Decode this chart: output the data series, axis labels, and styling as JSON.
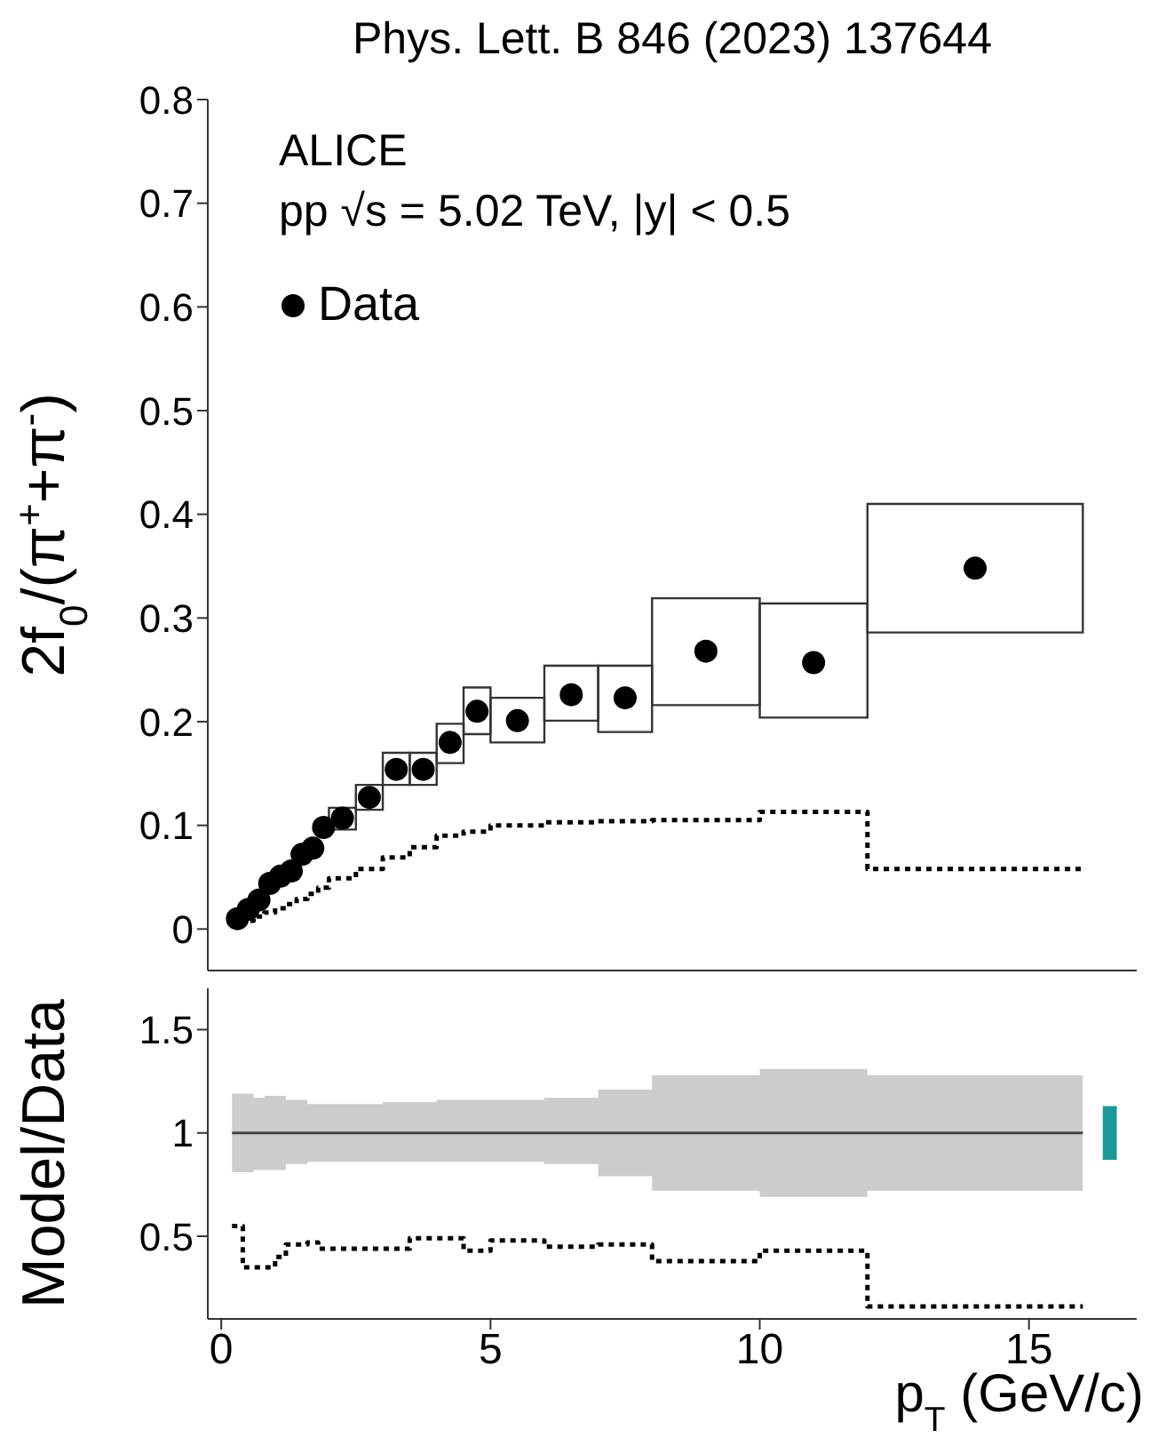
{
  "chart_data": [
    {
      "type": "scatter",
      "title": "Phys. Lett. B 846 (2023) 137644",
      "ylabel": "2f$_{0}$/(π$^{+}$+π$^{-}$)",
      "annotations": [
        "ALICE",
        "pp √s = 5.02 TeV, |y| < 0.5"
      ],
      "xlim": [
        -0.25,
        17
      ],
      "xticks": [
        0,
        5,
        10,
        15
      ],
      "ylim": [
        -0.04,
        0.8
      ],
      "yticks": [
        0,
        0.1,
        0.2,
        0.3,
        0.4,
        0.5,
        0.6,
        0.7,
        0.8
      ],
      "tick_labels": "y",
      "legend": "top left",
      "grid": false,
      "series": [
        {
          "name": "Data",
          "color": "#000000",
          "marker": "circle",
          "x": [
            0.3,
            0.5,
            0.7,
            0.9,
            1.1,
            1.3,
            1.5,
            1.7,
            1.9,
            2.25,
            2.75,
            3.25,
            3.75,
            4.25,
            4.75,
            5.5,
            6.5,
            7.5,
            9,
            11,
            14
          ],
          "values": [
            0.01,
            0.019,
            0.028,
            0.044,
            0.051,
            0.056,
            0.072,
            0.078,
            0.098,
            0.107,
            0.127,
            0.154,
            0.154,
            0.18,
            0.21,
            0.201,
            0.226,
            0.223,
            0.268,
            0.257,
            0.348
          ]
        },
        {
          "type": "bar",
          "color": "#333333",
          "x": [
            2.25,
            2.75,
            3.25,
            3.75,
            4.25,
            4.75,
            5.5,
            6.5,
            7.5,
            9,
            11,
            14
          ],
          "base": [
            0.096,
            0.115,
            0.139,
            0.139,
            0.16,
            0.188,
            0.18,
            0.201,
            0.19,
            0.216,
            0.204,
            0.286
          ],
          "values": [
            0.021,
            0.024,
            0.031,
            0.031,
            0.038,
            0.045,
            0.043,
            0.053,
            0.064,
            0.103,
            0.11,
            0.124
          ]
        },
        {
          "type": "step",
          "color": "#000000",
          "line_style": "dotted",
          "x": [
            0.2,
            0.4,
            0.6,
            0.8,
            1.0,
            1.2,
            1.4,
            1.6,
            1.8,
            2.0,
            2.5,
            3.0,
            3.5,
            4.0,
            4.5,
            5,
            6,
            7,
            8,
            10,
            12,
            16
          ],
          "values": [
            0.005,
            0.008,
            0.012,
            0.016,
            0.02,
            0.024,
            0.029,
            0.034,
            0.04,
            0.049,
            0.058,
            0.069,
            0.079,
            0.09,
            0.094,
            0.1,
            0.103,
            0.104,
            0.105,
            0.113,
            0.058,
            0.058
          ]
        }
      ]
    },
    {
      "type": "step",
      "ylabel": "Model/Data",
      "xlabel": "p$_{T}$ (GeV/c)",
      "xlim": [
        -0.25,
        17
      ],
      "xticks": [
        0,
        5,
        10,
        15
      ],
      "ylim": [
        0.1,
        1.7
      ],
      "yticks": [
        0.5,
        1,
        1.5
      ],
      "grid": false,
      "series": [
        {
          "color": "#444444",
          "x": [
            0.2,
            0.6,
            0.8,
            1.2,
            1.6,
            3,
            4,
            6,
            7,
            8,
            10,
            12,
            16
          ],
          "values": [
            1,
            1,
            1,
            1,
            1,
            1,
            1,
            1,
            1,
            1,
            1,
            1,
            1
          ],
          "lower": [
            0.81,
            0.82,
            0.82,
            0.85,
            0.86,
            0.86,
            0.86,
            0.85,
            0.79,
            0.72,
            0.69,
            0.72,
            0.72
          ],
          "upper": [
            1.19,
            1.17,
            1.18,
            1.16,
            1.14,
            1.15,
            1.16,
            1.17,
            1.21,
            1.28,
            1.31,
            1.28,
            1.28
          ]
        },
        {
          "color": "#000000",
          "line_style": "dotted",
          "x": [
            0.2,
            0.4,
            1.0,
            1.2,
            1.6,
            1.8,
            3.5,
            4.5,
            5,
            6,
            7,
            8,
            10,
            12,
            16
          ],
          "values": [
            0.55,
            0.35,
            0.4,
            0.46,
            0.47,
            0.44,
            0.49,
            0.43,
            0.48,
            0.45,
            0.46,
            0.38,
            0.43,
            0.16,
            0.16
          ]
        },
        {
          "type": "bar",
          "color": "#1a9a9a",
          "x": [
            16.5
          ],
          "base": [
            0.87
          ],
          "values": [
            0.26
          ]
        }
      ]
    }
  ]
}
